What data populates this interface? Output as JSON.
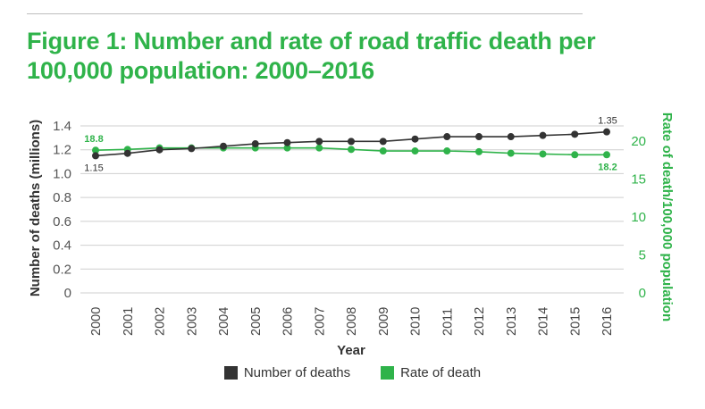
{
  "title": "Figure 1: Number and rate of road traffic death per\n100,000 population: 2000–2016",
  "colors": {
    "deaths": "#333333",
    "rate": "#2fb34a",
    "title": "#2fb34a",
    "grid": "#cfcfcf",
    "axis_text": "#555555"
  },
  "chart_data": {
    "type": "line",
    "x": [
      "2000",
      "2001",
      "2002",
      "2003",
      "2004",
      "2005",
      "2006",
      "2007",
      "2008",
      "2009",
      "2010",
      "2011",
      "2012",
      "2013",
      "2014",
      "2015",
      "2016"
    ],
    "xlabel": "Year",
    "ylabel_left": "Number of deaths (millions)",
    "ylabel_right": "Rate of death/100,000 population",
    "ylim_left": [
      0,
      1.4
    ],
    "yticks_left": [
      "0",
      "0.2",
      "0.4",
      "0.6",
      "0.8",
      "1.0",
      "1.2",
      "1.4"
    ],
    "ylim_right": [
      0,
      20
    ],
    "yticks_right": [
      "0",
      "5",
      "10",
      "15",
      "20"
    ],
    "grid": true,
    "legend_position": "bottom",
    "series": [
      {
        "name": "Number of deaths",
        "axis": "left",
        "values": [
          1.15,
          1.17,
          1.2,
          1.21,
          1.23,
          1.25,
          1.26,
          1.27,
          1.27,
          1.27,
          1.29,
          1.31,
          1.31,
          1.31,
          1.32,
          1.33,
          1.35
        ]
      },
      {
        "name": "Rate of death",
        "axis": "right",
        "values": [
          18.8,
          18.9,
          19.1,
          19.1,
          19.1,
          19.1,
          19.1,
          19.1,
          18.9,
          18.7,
          18.7,
          18.7,
          18.6,
          18.4,
          18.3,
          18.2,
          18.2
        ]
      }
    ],
    "annotations": [
      {
        "series": "Number of deaths",
        "index": 0,
        "label": "1.15",
        "placement": "below"
      },
      {
        "series": "Number of deaths",
        "index": 16,
        "label": "1.35",
        "placement": "above"
      },
      {
        "series": "Rate of death",
        "index": 0,
        "label": "18.8",
        "placement": "above"
      },
      {
        "series": "Rate of death",
        "index": 16,
        "label": "18.2",
        "placement": "below"
      }
    ]
  }
}
